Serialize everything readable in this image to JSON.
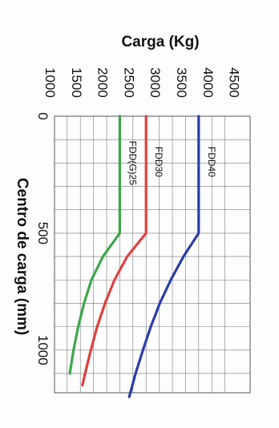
{
  "chart_data": {
    "type": "line",
    "title": "",
    "ylabel": "Carga (Kg)",
    "xlabel": "Centro de carga (mm)",
    "x_ticks": [
      0,
      500,
      1000
    ],
    "y_ticks": [
      1000,
      1500,
      2000,
      2500,
      3000,
      3500,
      4000,
      4500
    ],
    "x_tick_labels": [
      "0",
      "500",
      "1000"
    ],
    "y_tick_labels": [
      "1000",
      "1500",
      "2000",
      "2500",
      "3000",
      "3500",
      "4000",
      "4500"
    ],
    "xlim": [
      0,
      1200
    ],
    "ylim": [
      1000,
      4500
    ],
    "grid": true,
    "orientation": "rotated-90-clockwise",
    "series": [
      {
        "name": "FDD40",
        "color": "#2a3ea8",
        "x": [
          0,
          100,
          200,
          300,
          400,
          500,
          600,
          700,
          800,
          900,
          1000,
          1100,
          1200
        ],
        "values": [
          4000,
          4000,
          4000,
          4000,
          4000,
          4000,
          3710,
          3470,
          3260,
          3090,
          2940,
          2800,
          2680
        ]
      },
      {
        "name": "FDD30",
        "color": "#e04040",
        "x": [
          0,
          100,
          200,
          300,
          400,
          500,
          600,
          700,
          800,
          900,
          1000,
          1100,
          1150
        ],
        "values": [
          3000,
          3000,
          3000,
          3000,
          3000,
          3000,
          2640,
          2400,
          2220,
          2070,
          1950,
          1840,
          1790
        ]
      },
      {
        "name": "FDD(G)25",
        "color": "#3da64a",
        "x": [
          0,
          100,
          200,
          300,
          400,
          500,
          600,
          700,
          800,
          900,
          1000,
          1100
        ],
        "values": [
          2500,
          2500,
          2500,
          2500,
          2500,
          2500,
          2180,
          1960,
          1820,
          1710,
          1620,
          1550
        ]
      }
    ]
  }
}
